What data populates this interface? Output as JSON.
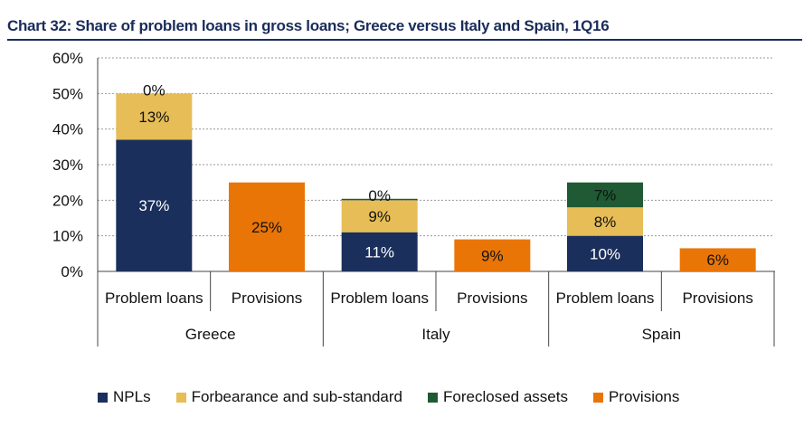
{
  "title": "Chart 32: Share of problem loans in gross loans; Greece versus Italy and Spain, 1Q16",
  "colors": {
    "NPLs": "#1b2f5c",
    "Forbearance and sub-standard": "#e6bd56",
    "Foreclosed assets": "#1f5a34",
    "Provisions": "#e97507",
    "title": "#1a2c5a"
  },
  "legend": [
    {
      "label": "NPLs",
      "color": "#1b2f5c"
    },
    {
      "label": "Forbearance and sub-standard",
      "color": "#e6bd56"
    },
    {
      "label": "Foreclosed assets",
      "color": "#1f5a34"
    },
    {
      "label": "Provisions",
      "color": "#e97507"
    }
  ],
  "chart_data": {
    "type": "bar",
    "stacked": true,
    "title": "Chart 32: Share of problem loans in gross loans; Greece versus Italy and Spain, 1Q16",
    "ylim": [
      0,
      60
    ],
    "yticks": [
      "0%",
      "10%",
      "20%",
      "30%",
      "40%",
      "50%",
      "60%"
    ],
    "grid": true,
    "legend_position": "bottom",
    "groups": [
      "Greece",
      "Italy",
      "Spain"
    ],
    "categories": [
      "Problem loans",
      "Provisions",
      "Problem loans",
      "Provisions",
      "Problem loans",
      "Provisions"
    ],
    "series": [
      {
        "name": "NPLs",
        "values": [
          37,
          0,
          11,
          0,
          10,
          0
        ],
        "labels": [
          "37%",
          "",
          "11%",
          "",
          "10%",
          ""
        ]
      },
      {
        "name": "Forbearance and sub-standard",
        "values": [
          13,
          0,
          9,
          0,
          8,
          0
        ],
        "labels": [
          "13%",
          "",
          "9%",
          "",
          "8%",
          ""
        ]
      },
      {
        "name": "Foreclosed assets",
        "values": [
          0,
          0,
          0.4,
          0,
          7,
          0
        ],
        "labels": [
          "0%",
          "",
          "0%",
          "",
          "7%",
          ""
        ]
      },
      {
        "name": "Provisions",
        "values": [
          0,
          25,
          0,
          9,
          0,
          6.5
        ],
        "labels": [
          "",
          "25%",
          "",
          "9%",
          "",
          "6%"
        ]
      }
    ]
  }
}
